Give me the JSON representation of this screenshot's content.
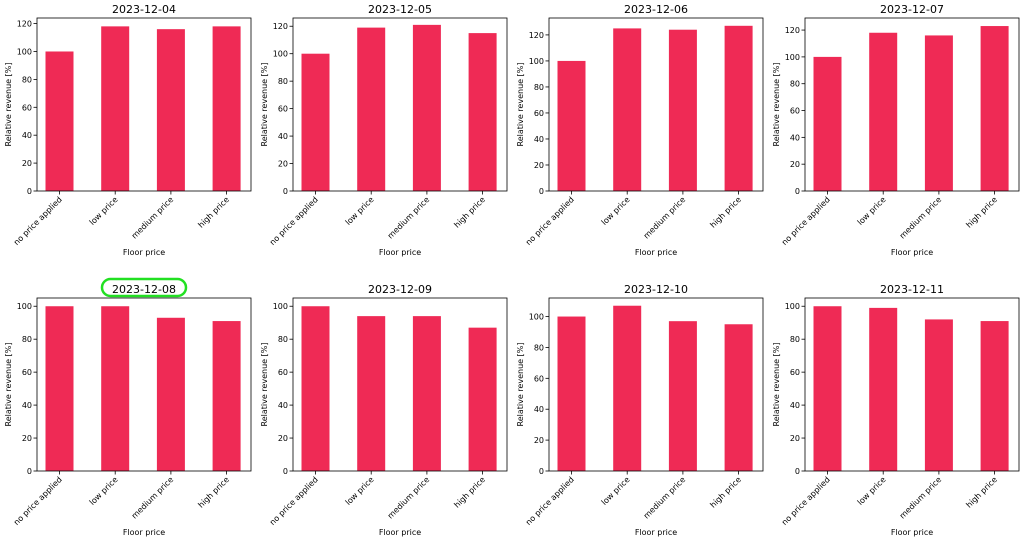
{
  "chart_data": [
    {
      "type": "bar",
      "title": "2023-12-04",
      "xlabel": "Floor price",
      "ylabel": "Relative revenue [%]",
      "categories": [
        "no price applied",
        "low price",
        "medium price",
        "high price"
      ],
      "values": [
        100,
        118,
        116,
        118
      ],
      "ylim": [
        0,
        124
      ],
      "yticks": [
        0,
        20,
        40,
        60,
        80,
        100,
        120
      ]
    },
    {
      "type": "bar",
      "title": "2023-12-05",
      "xlabel": "Floor price",
      "ylabel": "Relative revenue [%]",
      "categories": [
        "no price applied",
        "low price",
        "medium price",
        "high price"
      ],
      "values": [
        100,
        119,
        121,
        115
      ],
      "ylim": [
        0,
        126
      ],
      "yticks": [
        0,
        20,
        40,
        60,
        80,
        100,
        120
      ]
    },
    {
      "type": "bar",
      "title": "2023-12-06",
      "xlabel": "Floor price",
      "ylabel": "Relative revenue [%]",
      "categories": [
        "no price applied",
        "low price",
        "medium price",
        "high price"
      ],
      "values": [
        100,
        125,
        124,
        127
      ],
      "ylim": [
        0,
        133
      ],
      "yticks": [
        0,
        20,
        40,
        60,
        80,
        100,
        120
      ]
    },
    {
      "type": "bar",
      "title": "2023-12-07",
      "xlabel": "Floor price",
      "ylabel": "Relative revenue [%]",
      "categories": [
        "no price applied",
        "low price",
        "medium price",
        "high price"
      ],
      "values": [
        100,
        118,
        116,
        123
      ],
      "ylim": [
        0,
        129
      ],
      "yticks": [
        0,
        20,
        40,
        60,
        80,
        100,
        120
      ]
    },
    {
      "type": "bar",
      "title": "2023-12-08",
      "xlabel": "Floor price",
      "ylabel": "Relative revenue [%]",
      "categories": [
        "no price applied",
        "low price",
        "medium price",
        "high price"
      ],
      "values": [
        100,
        100,
        93,
        91
      ],
      "ylim": [
        0,
        105
      ],
      "yticks": [
        0,
        20,
        40,
        60,
        80,
        100
      ],
      "highlight_title": true
    },
    {
      "type": "bar",
      "title": "2023-12-09",
      "xlabel": "Floor price",
      "ylabel": "Relative revenue [%]",
      "categories": [
        "no price applied",
        "low price",
        "medium price",
        "high price"
      ],
      "values": [
        100,
        94,
        94,
        87
      ],
      "ylim": [
        0,
        105
      ],
      "yticks": [
        0,
        20,
        40,
        60,
        80,
        100
      ]
    },
    {
      "type": "bar",
      "title": "2023-12-10",
      "xlabel": "Floor price",
      "ylabel": "Relative revenue [%]",
      "categories": [
        "no price applied",
        "low price",
        "medium price",
        "high price"
      ],
      "values": [
        100,
        107,
        97,
        95
      ],
      "ylim": [
        0,
        112
      ],
      "yticks": [
        0,
        20,
        40,
        60,
        80,
        100
      ]
    },
    {
      "type": "bar",
      "title": "2023-12-11",
      "xlabel": "Floor price",
      "ylabel": "Relative revenue [%]",
      "categories": [
        "no price applied",
        "low price",
        "medium price",
        "high price"
      ],
      "values": [
        100,
        99,
        92,
        91
      ],
      "ylim": [
        0,
        105
      ],
      "yticks": [
        0,
        20,
        40,
        60,
        80,
        100
      ]
    }
  ],
  "colors": {
    "bar": "#ef2a55",
    "highlight": "#22e022",
    "axis": "#000000"
  }
}
